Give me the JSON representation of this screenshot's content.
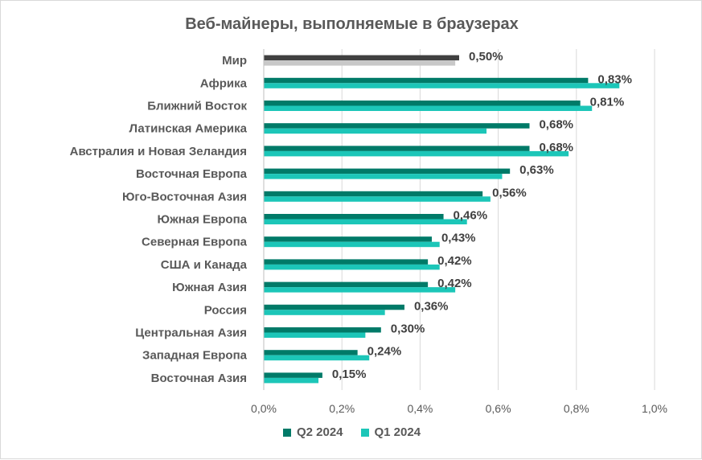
{
  "chart_data": {
    "type": "bar",
    "orientation": "horizontal",
    "title": "Веб-майнеры, выполняемые в браузерах",
    "categories": [
      "Мир",
      "Африка",
      "Ближний Восток",
      "Латинская Америка",
      "Австралия и Новая Зеландия",
      "Восточная Европа",
      "Юго-Восточная Азия",
      "Южная Европа",
      "Северная Европа",
      "США и Канада",
      "Южная Азия",
      "Россия",
      "Центральная Азия",
      "Западная Европа",
      "Восточная Азия"
    ],
    "series": [
      {
        "name": "Q2 2024",
        "color": "#007a68",
        "values": [
          0.5,
          0.83,
          0.81,
          0.68,
          0.68,
          0.63,
          0.56,
          0.46,
          0.43,
          0.42,
          0.42,
          0.36,
          0.3,
          0.24,
          0.15
        ]
      },
      {
        "name": "Q1 2024",
        "color": "#1cc6b8",
        "values": [
          0.49,
          0.91,
          0.84,
          0.57,
          0.78,
          0.61,
          0.58,
          0.52,
          0.45,
          0.45,
          0.49,
          0.31,
          0.26,
          0.27,
          0.14
        ]
      }
    ],
    "highlight": {
      "category": "Мир",
      "colors": [
        "#404040",
        "#c8c8c8"
      ]
    },
    "data_labels": [
      "0,50%",
      "0,83%",
      "0,81%",
      "0,68%",
      "0,68%",
      "0,63%",
      "0,56%",
      "0,46%",
      "0,43%",
      "0,42%",
      "0,42%",
      "0,36%",
      "0,30%",
      "0,24%",
      "0,15%"
    ],
    "x_ticks": [
      0,
      0.2,
      0.4,
      0.6,
      0.8,
      1.0
    ],
    "x_tick_labels": [
      "0,0%",
      "0,2%",
      "0,4%",
      "0,6%",
      "0,8%",
      "1,0%"
    ],
    "xlim": [
      0,
      1.0
    ],
    "grid": true,
    "legend_position": "bottom"
  }
}
